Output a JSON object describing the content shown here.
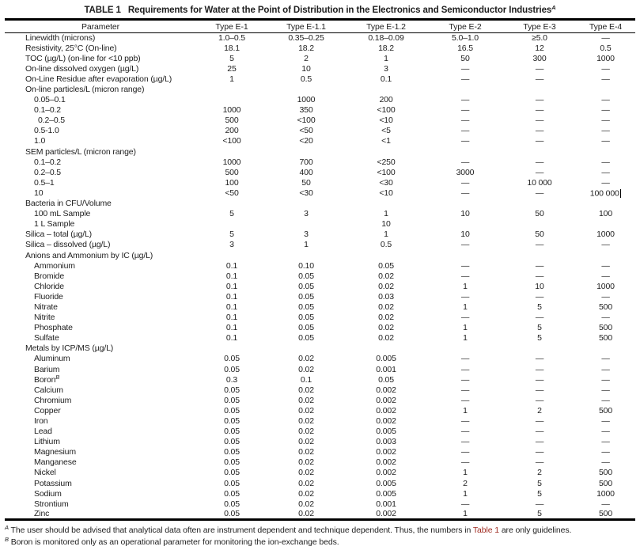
{
  "title": {
    "label": "TABLE 1",
    "text": "Requirements for Water at the Point of Distribution in the Electronics and Semiconductor Industries",
    "sup": "A"
  },
  "colors": {
    "link": "#a02c22",
    "text": "#1e1e1e",
    "rule": "#000000"
  },
  "table": {
    "columns": [
      "Parameter",
      "Type E-1",
      "Type E-1.1",
      "Type E-1.2",
      "Type E-2",
      "Type E-3",
      "Type E-4"
    ],
    "rows": [
      {
        "param": "Linewidth (microns)",
        "indent": 0,
        "values": [
          "1.0–0.5",
          "0.35–0.25",
          "0.18–0.09",
          "5.0–1.0",
          "≥5.0",
          "—"
        ]
      },
      {
        "param": "Resistivity, 25°C (On-line)",
        "indent": 0,
        "values": [
          "18.1",
          "18.2",
          "18.2",
          "16.5",
          "12",
          "0.5"
        ]
      },
      {
        "param": "TOC (µg/L) (on-line for <10 ppb)",
        "indent": 0,
        "values": [
          "5",
          "2",
          "1",
          "50",
          "300",
          "1000"
        ]
      },
      {
        "param": "On-line dissolved oxygen (µg/L)",
        "indent": 0,
        "values": [
          "25",
          "10",
          "3",
          "—",
          "—",
          "—"
        ]
      },
      {
        "param": "On-Line Residue after evaporation (µg/L)",
        "indent": 0,
        "values": [
          "1",
          "0.5",
          "0.1",
          "—",
          "—",
          "—"
        ]
      },
      {
        "param": "On-line particles/L (micron range)",
        "indent": 0,
        "values": [
          "",
          "",
          "",
          "",
          "",
          ""
        ]
      },
      {
        "param": "0.05–0.1",
        "indent": 1,
        "values": [
          "",
          "1000",
          "200",
          "—",
          "—",
          "—"
        ]
      },
      {
        "param": "0.1–0.2",
        "indent": 1,
        "values": [
          "1000",
          "350",
          "<100",
          "—",
          "—",
          "—"
        ]
      },
      {
        "param": "0.2–0.5",
        "indent": 2,
        "values": [
          "500",
          "<100",
          "<10",
          "—",
          "—",
          "—"
        ]
      },
      {
        "param": "0.5-1.0",
        "indent": 1,
        "values": [
          "200",
          "<50",
          "<5",
          "—",
          "—",
          "—"
        ]
      },
      {
        "param": "1.0",
        "indent": 1,
        "values": [
          "<100",
          "<20",
          "<1",
          "—",
          "—",
          "—"
        ]
      },
      {
        "param": "SEM particles/L (micron range)",
        "indent": 0,
        "values": [
          "",
          "",
          "",
          "",
          "",
          ""
        ]
      },
      {
        "param": "0.1–0.2",
        "indent": 1,
        "values": [
          "1000",
          "700",
          "<250",
          "—",
          "—",
          "—"
        ]
      },
      {
        "param": "0.2–0.5",
        "indent": 1,
        "values": [
          "500",
          "400",
          "<100",
          "3000",
          "—",
          "—"
        ]
      },
      {
        "param": "0.5–1",
        "indent": 1,
        "values": [
          "100",
          "50",
          "<30",
          "—",
          "10 000",
          "—"
        ]
      },
      {
        "param": "10",
        "indent": 1,
        "values": [
          "<50",
          "<30",
          "<10",
          "—",
          "—",
          "100 000"
        ],
        "cursor_col": 5
      },
      {
        "param": "Bacteria in CFU/Volume",
        "indent": 0,
        "values": [
          "",
          "",
          "",
          "",
          "",
          ""
        ]
      },
      {
        "param": "100 mL Sample",
        "indent": 1,
        "values": [
          "5",
          "3",
          "1",
          "10",
          "50",
          "100"
        ]
      },
      {
        "param": "1 L Sample",
        "indent": 1,
        "values": [
          "",
          "",
          "10",
          "",
          "",
          ""
        ]
      },
      {
        "param": "Silica – total (µg/L)",
        "indent": 0,
        "values": [
          "5",
          "3",
          "1",
          "10",
          "50",
          "1000"
        ]
      },
      {
        "param": "Silica – dissolved (µg/L)",
        "indent": 0,
        "values": [
          "3",
          "1",
          "0.5",
          "—",
          "—",
          "—"
        ]
      },
      {
        "param": "Anions and Ammonium by IC (µg/L)",
        "indent": 0,
        "values": [
          "",
          "",
          "",
          "",
          "",
          ""
        ]
      },
      {
        "param": "Ammonium",
        "indent": 1,
        "values": [
          "0.1",
          "0.10",
          "0.05",
          "—",
          "—",
          "—"
        ]
      },
      {
        "param": "Bromide",
        "indent": 1,
        "values": [
          "0.1",
          "0.05",
          "0.02",
          "—",
          "—",
          "—"
        ]
      },
      {
        "param": "Chloride",
        "indent": 1,
        "values": [
          "0.1",
          "0.05",
          "0.02",
          "1",
          "10",
          "1000"
        ]
      },
      {
        "param": "Fluoride",
        "indent": 1,
        "values": [
          "0.1",
          "0.05",
          "0.03",
          "—",
          "—",
          "—"
        ]
      },
      {
        "param": "Nitrate",
        "indent": 1,
        "values": [
          "0.1",
          "0.05",
          "0.02",
          "1",
          "5",
          "500"
        ]
      },
      {
        "param": "Nitrite",
        "indent": 1,
        "values": [
          "0.1",
          "0.05",
          "0.02",
          "—",
          "—",
          "—"
        ]
      },
      {
        "param": "Phosphate",
        "indent": 1,
        "values": [
          "0.1",
          "0.05",
          "0.02",
          "1",
          "5",
          "500"
        ]
      },
      {
        "param": "Sulfate",
        "indent": 1,
        "values": [
          "0.1",
          "0.05",
          "0.02",
          "1",
          "5",
          "500"
        ]
      },
      {
        "param": "Metals by ICP/MS (µg/L)",
        "indent": 0,
        "values": [
          "",
          "",
          "",
          "",
          "",
          ""
        ]
      },
      {
        "param": "Aluminum",
        "indent": 1,
        "values": [
          "0.05",
          "0.02",
          "0.005",
          "—",
          "—",
          "—"
        ]
      },
      {
        "param": "Barium",
        "indent": 1,
        "values": [
          "0.05",
          "0.02",
          "0.001",
          "—",
          "—",
          "—"
        ]
      },
      {
        "param": "Boron",
        "sup": "B",
        "indent": 1,
        "values": [
          "0.3",
          "0.1",
          "0.05",
          "—",
          "—",
          "—"
        ]
      },
      {
        "param": "Calcium",
        "indent": 1,
        "values": [
          "0.05",
          "0.02",
          "0.002",
          "—",
          "—",
          "—"
        ]
      },
      {
        "param": "Chromium",
        "indent": 1,
        "values": [
          "0.05",
          "0.02",
          "0.002",
          "—",
          "—",
          "—"
        ]
      },
      {
        "param": "Copper",
        "indent": 1,
        "values": [
          "0.05",
          "0.02",
          "0.002",
          "1",
          "2",
          "500"
        ]
      },
      {
        "param": "Iron",
        "indent": 1,
        "values": [
          "0.05",
          "0.02",
          "0.002",
          "—",
          "—",
          "—"
        ]
      },
      {
        "param": "Lead",
        "indent": 1,
        "values": [
          "0.05",
          "0.02",
          "0.005",
          "—",
          "—",
          "—"
        ]
      },
      {
        "param": "Lithium",
        "indent": 1,
        "values": [
          "0.05",
          "0.02",
          "0.003",
          "—",
          "—",
          "—"
        ]
      },
      {
        "param": "Magnesium",
        "indent": 1,
        "values": [
          "0.05",
          "0.02",
          "0.002",
          "—",
          "—",
          "—"
        ]
      },
      {
        "param": "Manganese",
        "indent": 1,
        "values": [
          "0.05",
          "0.02",
          "0.002",
          "—",
          "—",
          "—"
        ]
      },
      {
        "param": "Nickel",
        "indent": 1,
        "values": [
          "0.05",
          "0.02",
          "0.002",
          "1",
          "2",
          "500"
        ]
      },
      {
        "param": "Potassium",
        "indent": 1,
        "values": [
          "0.05",
          "0.02",
          "0.005",
          "2",
          "5",
          "500"
        ]
      },
      {
        "param": "Sodium",
        "indent": 1,
        "values": [
          "0.05",
          "0.02",
          "0.005",
          "1",
          "5",
          "1000"
        ]
      },
      {
        "param": "Strontium",
        "indent": 1,
        "values": [
          "0.05",
          "0.02",
          "0.001",
          "—",
          "—",
          "—"
        ]
      },
      {
        "param": "Zinc",
        "indent": 1,
        "values": [
          "0.05",
          "0.02",
          "0.002",
          "1",
          "5",
          "500"
        ]
      }
    ]
  },
  "footnotes": [
    {
      "sup": "A",
      "text1": "The user should be advised that analytical data often are instrument dependent and technique dependent. Thus, the numbers in ",
      "link": "Table 1",
      "text2": " are only guidelines."
    },
    {
      "sup": "B",
      "text1": "Boron is monitored only as an operational parameter for monitoring the ion-exchange beds."
    }
  ]
}
